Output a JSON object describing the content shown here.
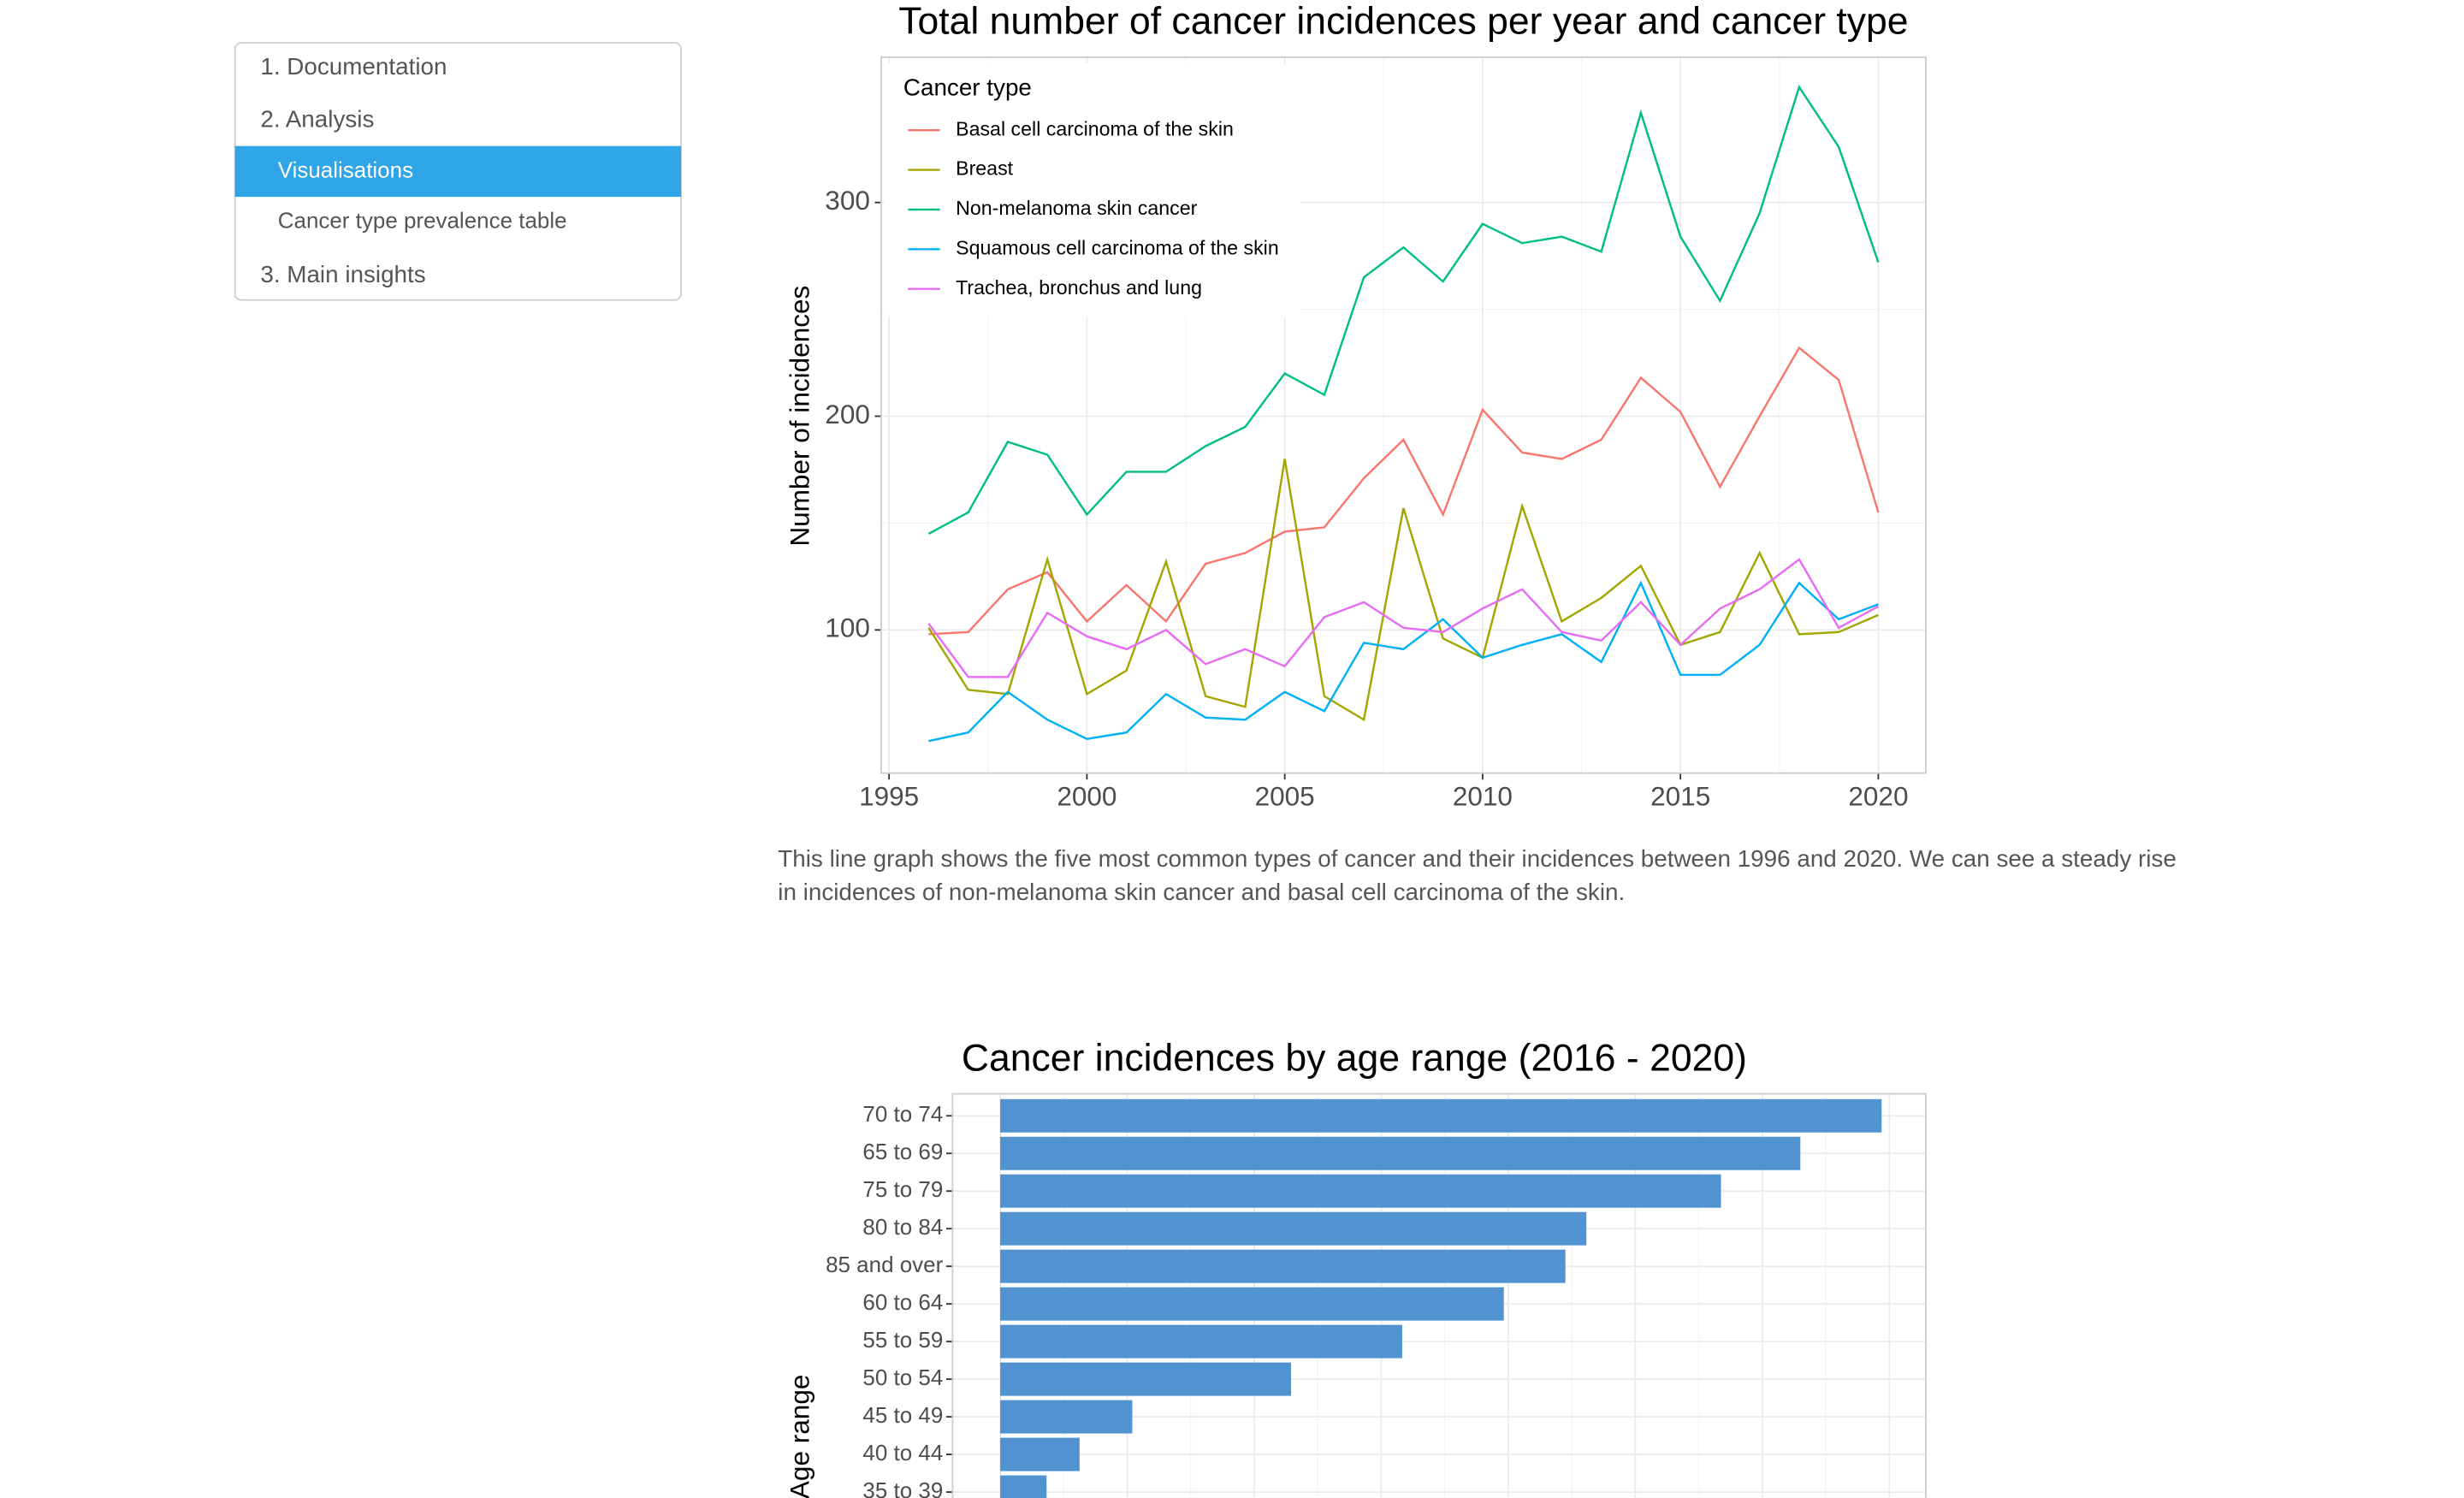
{
  "nav": {
    "items": [
      "1. Documentation",
      "2. Analysis",
      "Visualisations",
      "Cancer type prevalence table",
      "3. Main insights"
    ]
  },
  "caption": [
    "This line graph shows the five most common types of cancer and their incidences between 1996 and 2020. We can see a steady rise",
    "in incidences of non-melanoma skin cancer and basal cell carcinoma of the skin."
  ],
  "chart_data": [
    {
      "type": "line",
      "title": "Total number of cancer incidences per year and cancer type",
      "y_label": "Number of incidences",
      "legend_title": "Cancer type",
      "legend": "top-left",
      "grid": true,
      "x": [
        1996,
        1997,
        1998,
        1999,
        2000,
        2001,
        2002,
        2003,
        2004,
        2005,
        2006,
        2007,
        2008,
        2009,
        2010,
        2011,
        2012,
        2013,
        2014,
        2015,
        2016,
        2017,
        2018,
        2019,
        2020
      ],
      "xlim": [
        1994.8,
        2021.2
      ],
      "xticks": [
        1995,
        2000,
        2005,
        2010,
        2015,
        2020
      ],
      "ylim": [
        33,
        368
      ],
      "yticks": [
        100,
        200,
        300
      ],
      "series": [
        {
          "name": "Basal cell carcinoma of the skin",
          "color": "#F8766D",
          "values": [
            98,
            99,
            119,
            127,
            104,
            121,
            104,
            131,
            136,
            146,
            148,
            171,
            189,
            154,
            203,
            183,
            180,
            189,
            218,
            202,
            167,
            200,
            232,
            217,
            155
          ]
        },
        {
          "name": "Breast",
          "color": "#A3A500",
          "values": [
            101,
            72,
            70,
            133,
            70,
            81,
            132,
            69,
            64,
            180,
            69,
            58,
            157,
            96,
            87,
            158,
            104,
            115,
            130,
            93,
            99,
            136,
            98,
            99,
            107
          ]
        },
        {
          "name": "Non-melanoma skin cancer",
          "color": "#00BF7D",
          "values": [
            145,
            155,
            188,
            182,
            154,
            174,
            174,
            186,
            195,
            220,
            210,
            265,
            279,
            263,
            290,
            281,
            284,
            277,
            342,
            284,
            254,
            295,
            354,
            326,
            272
          ]
        },
        {
          "name": "Squamous cell carcinoma of the skin",
          "color": "#00B0F6",
          "values": [
            48,
            52,
            71,
            58,
            49,
            52,
            70,
            59,
            58,
            71,
            62,
            94,
            91,
            105,
            87,
            93,
            98,
            85,
            122,
            79,
            79,
            93,
            122,
            105,
            112
          ]
        },
        {
          "name": "Trachea, bronchus and lung",
          "color": "#E76BF3",
          "values": [
            103,
            78,
            78,
            108,
            97,
            91,
            100,
            84,
            91,
            83,
            106,
            113,
            101,
            99,
            110,
            119,
            99,
            95,
            113,
            93,
            110,
            119,
            133,
            101,
            111
          ]
        }
      ]
    },
    {
      "type": "hbar",
      "title": "Cancer incidences by age range (2016 - 2020)",
      "y_label": "Age range",
      "color": "#5093D0",
      "grid": true,
      "categories": [
        "70 to 74",
        "65 to 69",
        "75 to 79",
        "80 to 84",
        "85 and over",
        "60 to 64",
        "55 to 59",
        "50 to 54",
        "45 to 49",
        "40 to 44",
        "35 to 39"
      ],
      "values": [
        1388,
        1260,
        1135,
        923,
        890,
        793,
        633,
        458,
        208,
        125,
        73
      ],
      "xlim": [
        -75,
        1457.5
      ],
      "xticks": [
        0,
        200,
        400,
        600,
        800,
        1000,
        1200,
        1400
      ]
    }
  ]
}
